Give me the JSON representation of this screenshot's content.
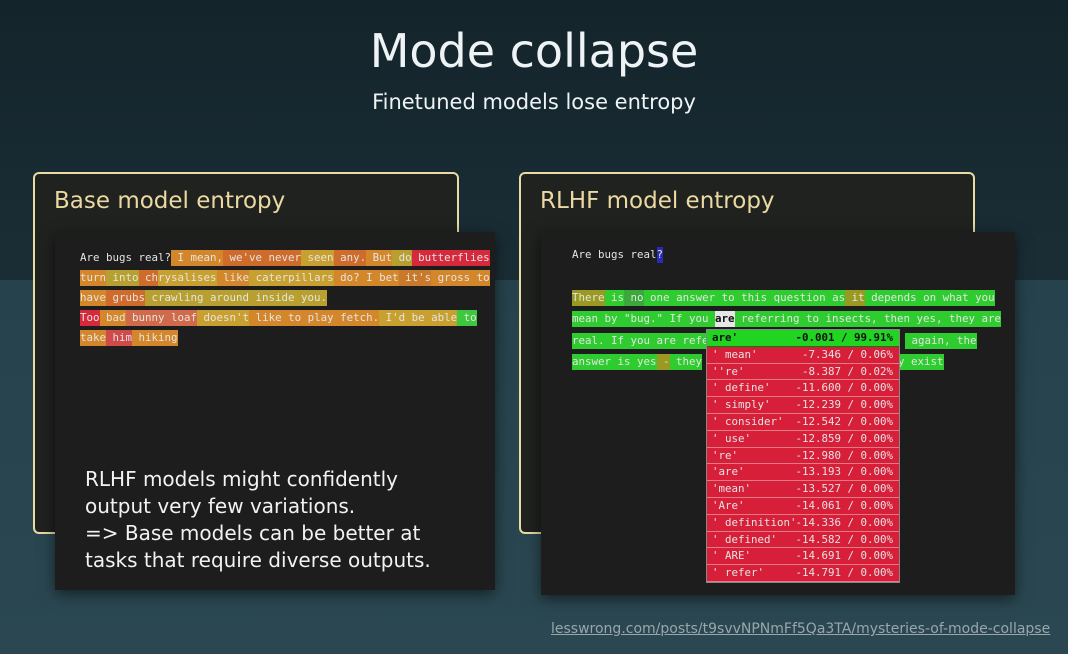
{
  "header": {
    "title": "Mode collapse",
    "subtitle": "Finetuned models lose entropy"
  },
  "base_panel": {
    "heading": "Base model entropy",
    "lines": [
      [
        {
          "text": "Are bugs real?"
        },
        {
          "text": " I mean,",
          "color": "#d4862a"
        },
        {
          "text": " we've never",
          "color": "#cf6b2b"
        },
        {
          "text": " seen",
          "color": "#c8a030"
        },
        {
          "text": " any.",
          "color": "#cf6b2b"
        },
        {
          "text": " But",
          "color": "#d4862a"
        },
        {
          "text": " do",
          "color": "#b8a030"
        },
        {
          "text": " butterflies",
          "color": "#d62a3c"
        }
      ],
      [
        {
          "text": "turn",
          "color": "#d4862a"
        },
        {
          "text": " into",
          "color": "#b8a030"
        },
        {
          "text": " ch",
          "color": "#cf6b2b"
        },
        {
          "text": "rysalises",
          "color": "#c8a030"
        },
        {
          "text": " like",
          "color": "#d4862a"
        },
        {
          "text": " caterpillars",
          "color": "#c8a030"
        },
        {
          "text": " do?",
          "color": "#d4862a"
        },
        {
          "text": " I bet",
          "color": "#d4862a"
        },
        {
          "text": " it's",
          "color": "#c87a2a"
        },
        {
          "text": " gross",
          "color": "#d4862a"
        },
        {
          "text": " to",
          "color": "#d4862a"
        }
      ],
      [
        {
          "text": "have",
          "color": "#d4862a"
        },
        {
          "text": " grubs",
          "color": "#cf6b2b"
        },
        {
          "text": " crawling around inside you.",
          "color": "#b8a030"
        }
      ],
      [
        {
          "text": "Too",
          "color": "#d62a3c"
        },
        {
          "text": " bad",
          "color": "#d4862a"
        },
        {
          "text": " bunny loaf",
          "color": "#d06a4a"
        },
        {
          "text": " doesn't",
          "color": "#c8a030"
        },
        {
          "text": " like to play fetch.",
          "color": "#d4862a"
        },
        {
          "text": " I'd be able",
          "color": "#c8a030"
        },
        {
          "text": " to",
          "color": "#3ec83e"
        }
      ],
      [
        {
          "text": "take",
          "color": "#d4862a"
        },
        {
          "text": " him",
          "color": "#d04a4a"
        },
        {
          "text": " hiking",
          "color": "#d4862a"
        }
      ]
    ],
    "note": [
      "RLHF models might confidently",
      "output very few variations.",
      "=> Base models can be better at",
      "tasks that require diverse outputs."
    ]
  },
  "rlhf_panel": {
    "heading": "RLHF model entropy",
    "prompt": [
      {
        "text": "Are bugs real"
      },
      {
        "text": "?",
        "color": "#2a2ab8"
      }
    ],
    "lines": [
      [
        {
          "text": "There",
          "color": "#9a9a22"
        },
        {
          "text": " is",
          "color": "#2ecc2e"
        },
        {
          "text": " no",
          "color": "#3aa83a"
        },
        {
          "text": " one",
          "color": "#2ecc2e"
        },
        {
          "text": " answer to this question as",
          "color": "#2ecc2e"
        },
        {
          "text": " it",
          "color": "#9a9a22"
        },
        {
          "text": " depends on what you",
          "color": "#2ecc2e"
        }
      ],
      [
        {
          "text": "mean by \"bug.\" If you ",
          "color": "#2ecc2e"
        },
        {
          "text": "are",
          "color": "#e6e6e6"
        },
        {
          "text": " referring to insects, then yes, they are",
          "color": "#2ecc2e"
        }
      ],
      [
        {
          "text": "real. If you are refe",
          "color": "#2ecc2e"
        },
        {
          "text": " again, the",
          "color": "#2ecc2e"
        }
      ],
      [
        {
          "text": "answer is yes",
          "color": "#2ecc2e"
        },
        {
          "text": " -",
          "color": "#9a9a22"
        },
        {
          "text": " they",
          "color": "#2ecc2e"
        },
        {
          "text": "y exist",
          "color": "#2ecc2e"
        }
      ]
    ],
    "popup": [
      {
        "token": "are'",
        "score": "-0.001 / 99.91%"
      },
      {
        "token": "' mean'",
        "score": "-7.346 / 0.06%"
      },
      {
        "token": "''re'",
        "score": "-8.387 / 0.02%"
      },
      {
        "token": "' define'",
        "score": "-11.600 / 0.00%"
      },
      {
        "token": "' simply'",
        "score": "-12.239 / 0.00%"
      },
      {
        "token": "' consider'",
        "score": "-12.542 / 0.00%"
      },
      {
        "token": "' use'",
        "score": "-12.859 / 0.00%"
      },
      {
        "token": "'re'",
        "score": "-12.980 / 0.00%"
      },
      {
        "token": "'are'",
        "score": "-13.193 / 0.00%"
      },
      {
        "token": "'mean'",
        "score": "-13.527 / 0.00%"
      },
      {
        "token": "'Are'",
        "score": "-14.061 / 0.00%"
      },
      {
        "token": "' definition'",
        "score": "-14.336 / 0.00%"
      },
      {
        "token": "' defined'",
        "score": "-14.582 / 0.00%"
      },
      {
        "token": "' ARE'",
        "score": "-14.691 / 0.00%"
      },
      {
        "token": "' refer'",
        "score": "-14.791 / 0.00%"
      }
    ]
  },
  "footer": {
    "link": "lesswrong.com/posts/t9svvNPNmFf5Qa3TA/mysteries-of-mode-collapse"
  }
}
